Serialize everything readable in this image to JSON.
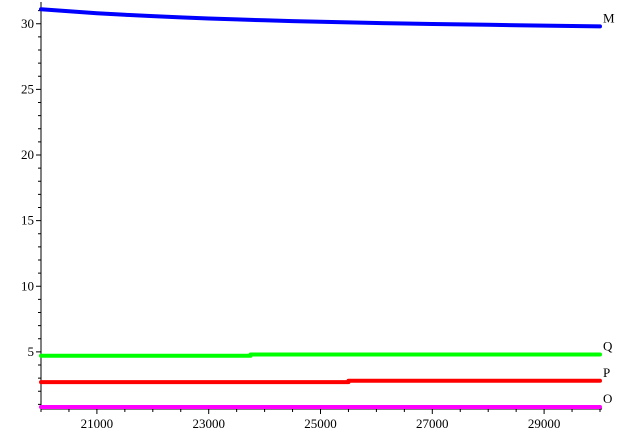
{
  "chart_data": {
    "type": "line",
    "title": "",
    "xlabel": "",
    "ylabel": "",
    "xlim": [
      20000,
      30000
    ],
    "ylim": [
      0.8,
      31.2
    ],
    "x_ticks": [
      21000,
      23000,
      25000,
      27000,
      29000
    ],
    "x_tick_labels": [
      "21000",
      "23000",
      "25000",
      "27000",
      "29000"
    ],
    "y_ticks": [
      5,
      10,
      15,
      20,
      25,
      30
    ],
    "y_tick_labels": [
      "5",
      "10",
      "15",
      "20",
      "25",
      "30"
    ],
    "grid": false,
    "series": [
      {
        "name": "M",
        "color": "#0000ff",
        "x": [
          20000,
          20500,
          21000,
          21500,
          22000,
          22500,
          23000,
          23500,
          24000,
          24500,
          25000,
          25500,
          26000,
          26500,
          27000,
          27500,
          28000,
          28500,
          29000,
          29500,
          30000
        ],
        "y": [
          31.1,
          30.95,
          30.8,
          30.68,
          30.58,
          30.48,
          30.4,
          30.33,
          30.26,
          30.2,
          30.15,
          30.1,
          30.06,
          30.02,
          29.98,
          29.95,
          29.92,
          29.89,
          29.86,
          29.83,
          29.8
        ]
      },
      {
        "name": "Q",
        "color": "#00ff00",
        "x": [
          20000,
          23750,
          23750,
          30000
        ],
        "y": [
          4.7,
          4.7,
          4.8,
          4.8
        ]
      },
      {
        "name": "P",
        "color": "#ff0000",
        "x": [
          20000,
          25500,
          25500,
          30000
        ],
        "y": [
          2.7,
          2.7,
          2.8,
          2.8
        ]
      },
      {
        "name": "O",
        "color": "#ff00ff",
        "x": [
          20000,
          30000
        ],
        "y": [
          0.8,
          0.8
        ]
      }
    ]
  }
}
